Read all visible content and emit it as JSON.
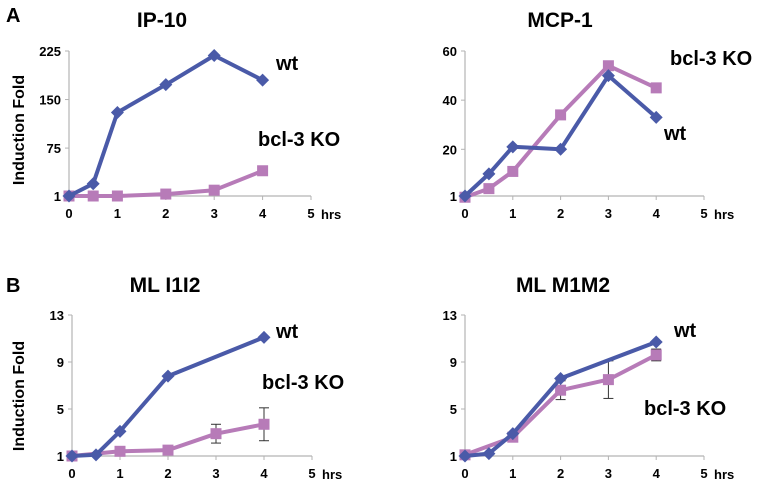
{
  "figure": {
    "panel_letters": [
      "A",
      "B"
    ],
    "y_axis_label": "Induction Fold",
    "x_unit": "hrs"
  },
  "chart_data": [
    {
      "type": "line",
      "title": "IP-10",
      "xlabel": "",
      "ylabel": "Induction Fold",
      "x_ticks": [
        "0",
        "1",
        "2",
        "3",
        "4",
        "5"
      ],
      "y_ticks": [
        "1",
        "75",
        "150",
        "225"
      ],
      "xlim": [
        0,
        5
      ],
      "ylim": [
        1,
        225
      ],
      "grid": false,
      "series": [
        {
          "name": "wt",
          "color": "#4a5aa8",
          "marker": "diamond",
          "x": [
            0,
            0.5,
            1,
            2,
            3,
            4
          ],
          "y": [
            1,
            20,
            130,
            173,
            218,
            180
          ],
          "err": [
            0,
            0,
            0,
            0,
            0,
            0
          ]
        },
        {
          "name": "bcl-3 KO",
          "color": "#b77bb8",
          "marker": "square",
          "x": [
            0,
            0.5,
            1,
            2,
            3,
            4
          ],
          "y": [
            1,
            1,
            1,
            4,
            10,
            40
          ],
          "err": [
            0,
            0,
            0,
            0,
            0,
            0
          ]
        }
      ]
    },
    {
      "type": "line",
      "title": "MCP-1",
      "xlabel": "",
      "ylabel": "",
      "x_ticks": [
        "0",
        "1",
        "2",
        "3",
        "4",
        "5"
      ],
      "y_ticks": [
        "1",
        "20",
        "40",
        "60"
      ],
      "xlim": [
        0,
        5
      ],
      "ylim": [
        1,
        60
      ],
      "grid": false,
      "series": [
        {
          "name": "wt",
          "color": "#4a5aa8",
          "marker": "diamond",
          "x": [
            0,
            0.5,
            1,
            2,
            3,
            4
          ],
          "y": [
            1,
            10,
            21,
            20,
            50,
            33
          ],
          "err": [
            0,
            0,
            0,
            0,
            0,
            0
          ]
        },
        {
          "name": "bcl-3 KO",
          "color": "#b77bb8",
          "marker": "square",
          "x": [
            0,
            0.5,
            1,
            2,
            3,
            4
          ],
          "y": [
            0.5,
            4,
            11,
            34,
            54,
            45
          ],
          "err": [
            0,
            0,
            0,
            0,
            0,
            0
          ]
        }
      ]
    },
    {
      "type": "line",
      "title": "ML I1I2",
      "xlabel": "",
      "ylabel": "Induction Fold",
      "x_ticks": [
        "0",
        "1",
        "2",
        "3",
        "4",
        "5"
      ],
      "y_ticks": [
        "1",
        "5",
        "9",
        "13"
      ],
      "xlim": [
        0,
        5
      ],
      "ylim": [
        1,
        13
      ],
      "grid": false,
      "series": [
        {
          "name": "wt",
          "color": "#4a5aa8",
          "marker": "diamond",
          "x": [
            0,
            0.5,
            1,
            2,
            4
          ],
          "y": [
            1,
            1.1,
            3.1,
            7.8,
            11.1
          ],
          "err": [
            0,
            0,
            0,
            0,
            0
          ]
        },
        {
          "name": "bcl-3 KO",
          "color": "#b77bb8",
          "marker": "square",
          "x": [
            0,
            1,
            2,
            3,
            4
          ],
          "y": [
            1,
            1.4,
            1.5,
            2.9,
            3.7
          ],
          "err": [
            0.15,
            0.2,
            0.3,
            0.8,
            1.4
          ]
        }
      ]
    },
    {
      "type": "line",
      "title": "ML M1M2",
      "xlabel": "",
      "ylabel": "",
      "x_ticks": [
        "0",
        "1",
        "2",
        "3",
        "4",
        "5"
      ],
      "y_ticks": [
        "1",
        "5",
        "9",
        "13"
      ],
      "xlim": [
        0,
        5
      ],
      "ylim": [
        1,
        13
      ],
      "grid": false,
      "series": [
        {
          "name": "wt",
          "color": "#4a5aa8",
          "marker": "diamond",
          "x": [
            0,
            0.5,
            1,
            2,
            4
          ],
          "y": [
            1,
            1.2,
            2.9,
            7.6,
            10.7
          ],
          "err": [
            0,
            0,
            0,
            0,
            0
          ]
        },
        {
          "name": "bcl-3 KO",
          "color": "#b77bb8",
          "marker": "square",
          "x": [
            0,
            1,
            2,
            3,
            4
          ],
          "y": [
            1.1,
            2.6,
            6.6,
            7.5,
            9.6
          ],
          "err": [
            0.15,
            0.3,
            0.8,
            1.6,
            0.5
          ]
        }
      ]
    }
  ]
}
